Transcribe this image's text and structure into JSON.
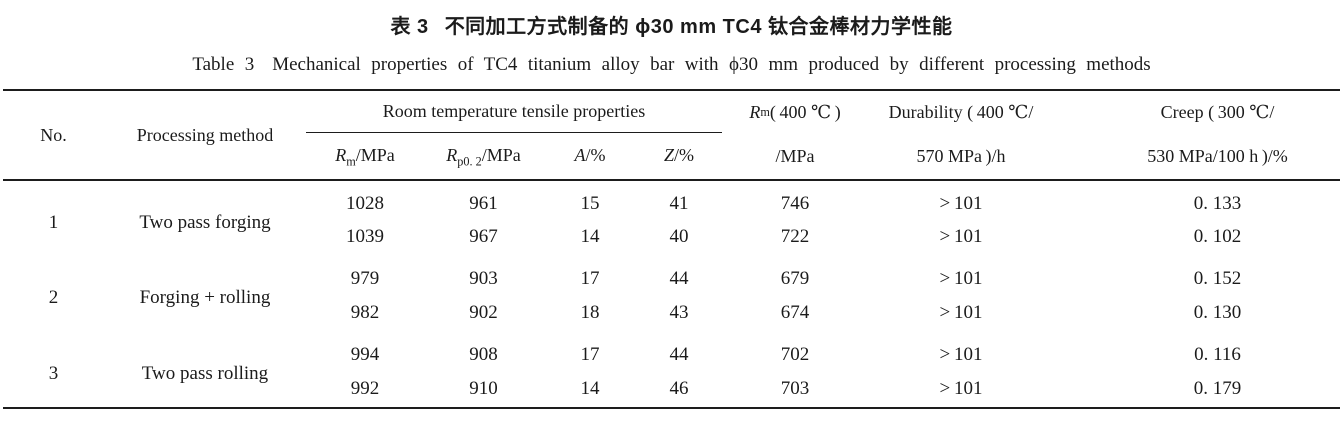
{
  "caption": {
    "zh_label": "表 3",
    "zh_text": "不同加工方式制备的 ϕ30 mm TC4 钛合金棒材力学性能",
    "en_label": "Table 3",
    "en_text": "Mechanical properties of TC4 titanium alloy bar with ϕ30 mm produced by different processing methods"
  },
  "table": {
    "header": {
      "no": "No.",
      "method": "Processing method",
      "tensile_group": "Room temperature tensile properties",
      "rm": "<i>R</i><sub>m</sub>/MPa",
      "rp02": "<i>R</i><sub>p0. 2</sub>/MPa",
      "a": "<i>A</i>/%",
      "z": "<i>Z</i>/%",
      "rm400_line1": "<i>R</i><sub>m</sub>( 400 ℃ )",
      "rm400_line2": "/MPa",
      "durability_line1": "Durability ( 400 ℃/",
      "durability_line2": "570 MPa )/h",
      "creep_line1": "Creep ( 300 ℃/",
      "creep_line2": "530 MPa/100 h )/%"
    },
    "groups": [
      {
        "no": "1",
        "method": "Two pass forging",
        "rows": [
          {
            "rm": "1028",
            "rp02": "961",
            "a": "15",
            "z": "41",
            "rm400": "746",
            "durability": "> 101",
            "creep": "0. 133"
          },
          {
            "rm": "1039",
            "rp02": "967",
            "a": "14",
            "z": "40",
            "rm400": "722",
            "durability": "> 101",
            "creep": "0. 102"
          }
        ]
      },
      {
        "no": "2",
        "method": "Forging + rolling",
        "rows": [
          {
            "rm": "979",
            "rp02": "903",
            "a": "17",
            "z": "44",
            "rm400": "679",
            "durability": "> 101",
            "creep": "0. 152"
          },
          {
            "rm": "982",
            "rp02": "902",
            "a": "18",
            "z": "43",
            "rm400": "674",
            "durability": "> 101",
            "creep": "0. 130"
          }
        ]
      },
      {
        "no": "3",
        "method": "Two pass rolling",
        "rows": [
          {
            "rm": "994",
            "rp02": "908",
            "a": "17",
            "z": "44",
            "rm400": "702",
            "durability": "> 101",
            "creep": "0. 116"
          },
          {
            "rm": "992",
            "rp02": "910",
            "a": "14",
            "z": "46",
            "rm400": "703",
            "durability": "> 101",
            "creep": "0. 179"
          }
        ]
      }
    ]
  }
}
